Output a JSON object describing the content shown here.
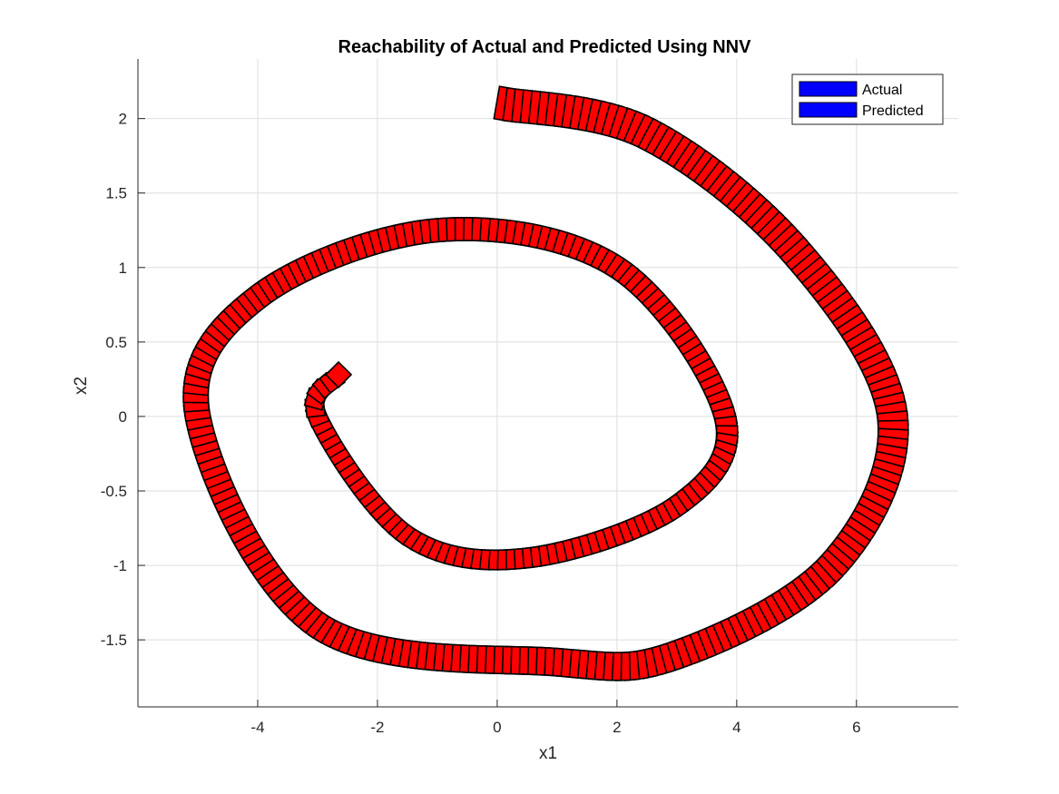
{
  "chart_data": {
    "type": "scatter",
    "title": "Reachability of Actual and Predicted Using NNV",
    "xlabel": "x1",
    "ylabel": "x2",
    "xlim": [
      -6,
      7.7
    ],
    "ylim": [
      -1.95,
      2.4
    ],
    "xticks": [
      -4,
      -2,
      0,
      2,
      4,
      6
    ],
    "yticks": [
      -1.5,
      -1,
      -0.5,
      0,
      0.5,
      1,
      1.5,
      2
    ],
    "xtick_labels": [
      "-4",
      "-2",
      "0",
      "2",
      "4",
      "6"
    ],
    "ytick_labels": [
      "-1.5",
      "-1",
      "-0.5",
      "0",
      "0.5",
      "1",
      "1.5",
      "2"
    ],
    "grid": true,
    "legend_position": "top-right",
    "legend": [
      {
        "label": "Actual",
        "color": "#0000ff"
      },
      {
        "label": "Predicted",
        "color": "#0000ff"
      }
    ],
    "series": [
      {
        "name": "Predicted",
        "color": "#ff0000",
        "edge_color": "#000000",
        "shape": "reachable-set boxes along spiral trajectory",
        "start_point": [
          0.1,
          2.1
        ],
        "end_point": [
          -2.65,
          0.28
        ],
        "start_box_size": [
          0.22,
          0.22
        ],
        "end_box_size": [
          0.3,
          0.12
        ],
        "box_count": 330,
        "path": [
          {
            "x": 0.1,
            "y": 2.1
          },
          {
            "x": 2.5,
            "y": 1.9
          },
          {
            "x": 5.0,
            "y": 1.1
          },
          {
            "x": 6.6,
            "y": 0.0
          },
          {
            "x": 5.6,
            "y": -1.0
          },
          {
            "x": 3.0,
            "y": -1.6
          },
          {
            "x": 1.0,
            "y": -1.65
          },
          {
            "x": -3.0,
            "y": -1.4
          },
          {
            "x": -5.0,
            "y": 0.0
          },
          {
            "x": -4.0,
            "y": 0.8
          },
          {
            "x": -1.0,
            "y": 1.25
          },
          {
            "x": 2.0,
            "y": 1.0
          },
          {
            "x": 3.8,
            "y": 0.0
          },
          {
            "x": 3.0,
            "y": -0.6
          },
          {
            "x": 0.5,
            "y": -0.95
          },
          {
            "x": -1.5,
            "y": -0.8
          },
          {
            "x": -3.0,
            "y": 0.0
          },
          {
            "x": -2.65,
            "y": 0.28
          }
        ]
      }
    ]
  }
}
